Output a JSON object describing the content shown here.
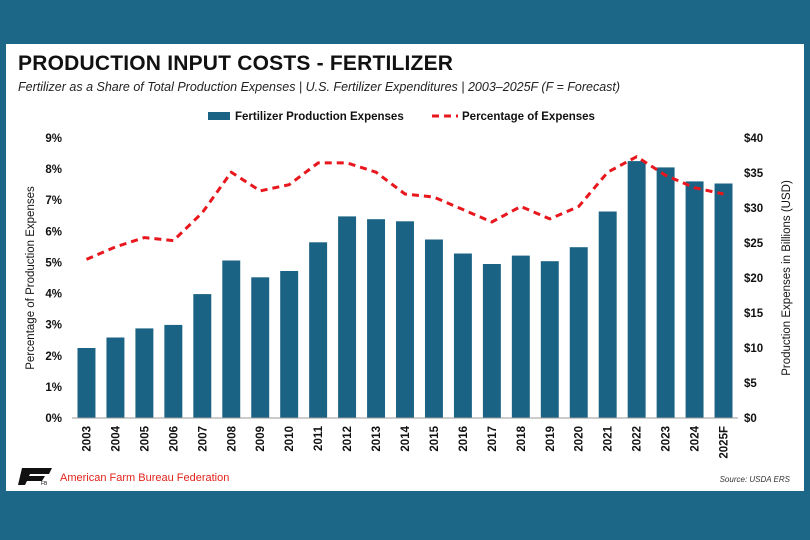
{
  "header": {
    "title": "PRODUCTION INPUT COSTS - FERTILIZER",
    "subtitle": "Fertilizer as a Share of Total Production Expenses | U.S. Fertilizer Expenditures | 2003–2025F (F = Forecast)"
  },
  "footer": {
    "logo_text": "FB",
    "org": "American Farm Bureau Federation",
    "source": "Source: USDA ERS"
  },
  "colors": {
    "bar": "#1b6384",
    "line": "#e8171d",
    "border": "#1c6688"
  },
  "chart_data": {
    "type": "bar",
    "categories": [
      "2003",
      "2004",
      "2005",
      "2006",
      "2007",
      "2008",
      "2009",
      "2010",
      "2011",
      "2012",
      "2013",
      "2014",
      "2015",
      "2016",
      "2017",
      "2018",
      "2019",
      "2020",
      "2021",
      "2022",
      "2023",
      "2024",
      "2025F"
    ],
    "series": [
      {
        "name": "Fertilizer Production Expenses",
        "type": "bar",
        "axis": "right",
        "values": [
          10.0,
          11.5,
          12.8,
          13.3,
          17.7,
          22.5,
          20.1,
          21.0,
          25.1,
          28.8,
          28.4,
          28.1,
          25.5,
          23.5,
          22.0,
          23.2,
          22.4,
          24.4,
          29.5,
          36.7,
          35.8,
          33.8,
          33.5
        ]
      },
      {
        "name": "Percentage of Expenses",
        "type": "line",
        "style": "dashed",
        "axis": "left",
        "values": [
          5.1,
          5.5,
          5.8,
          5.7,
          6.6,
          7.9,
          7.3,
          7.5,
          8.2,
          8.2,
          7.9,
          7.2,
          7.1,
          6.7,
          6.3,
          6.8,
          6.4,
          6.8,
          7.9,
          8.4,
          7.8,
          7.4,
          7.2
        ]
      }
    ],
    "legend": [
      "Fertilizer Production Expenses",
      "Percentage of Expenses"
    ],
    "legend_position": "top",
    "ylabel_left": "Percentage of Production Expenses",
    "ylabel_right": "Production Expenses in Billions (USD)",
    "yticks_left": [
      "0%",
      "1%",
      "2%",
      "3%",
      "4%",
      "5%",
      "6%",
      "7%",
      "8%",
      "9%"
    ],
    "yticks_right": [
      "$0",
      "$5",
      "$10",
      "$15",
      "$20",
      "$25",
      "$30",
      "$35",
      "$40"
    ],
    "ylim_left": [
      0,
      9
    ],
    "ylim_right": [
      0,
      40
    ]
  }
}
